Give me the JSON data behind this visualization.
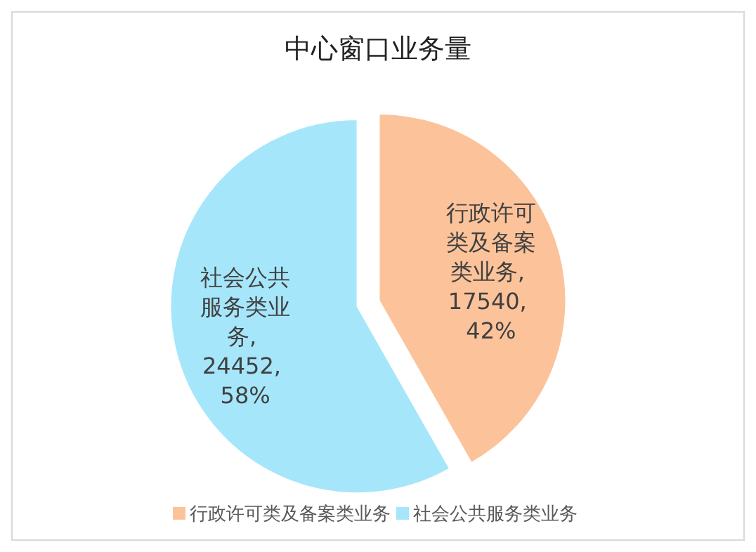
{
  "chart_data": {
    "type": "pie",
    "title": "中心窗口业务量",
    "categories": [
      "行政许可类及备案类业务",
      "社会公共服务类业务"
    ],
    "values": [
      17540,
      24452
    ],
    "colors": [
      "#fcc39a",
      "#a6e6fa"
    ],
    "value_labels": [
      "行政许可类及备案类业务, 17540, 42%",
      "社会公共服务类业务, 24452, 58%"
    ],
    "legend": "bottom"
  }
}
